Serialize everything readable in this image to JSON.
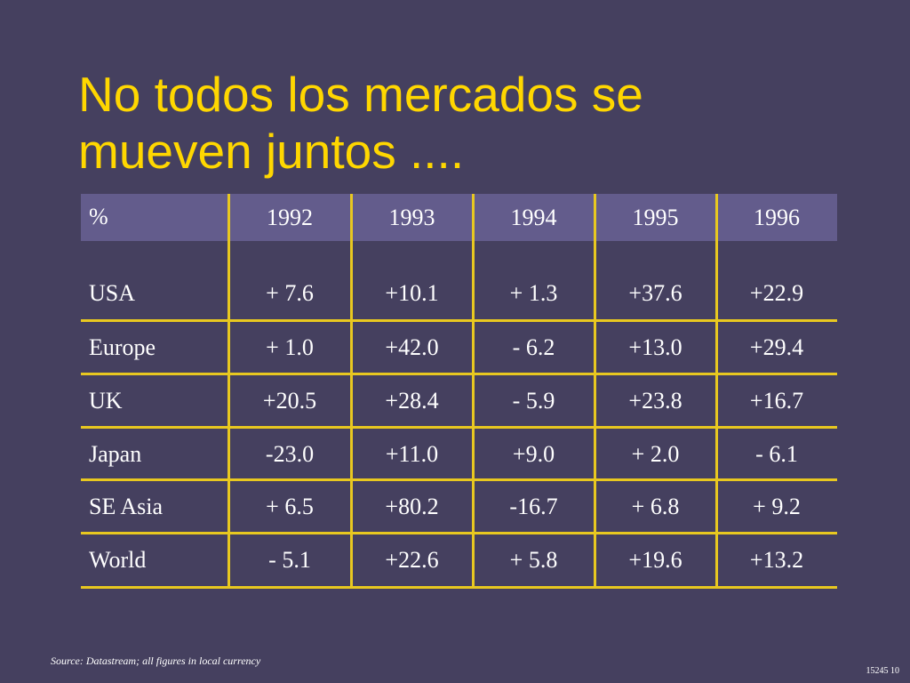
{
  "title_lines": [
    "No todos los mercados se",
    "mueven juntos ...."
  ],
  "table": {
    "header": [
      "%",
      "1992",
      "1993",
      "1994",
      "1995",
      "1996"
    ],
    "rows": [
      [
        "USA",
        "+ 7.6",
        "+10.1",
        "+ 1.3",
        "+37.6",
        "+22.9"
      ],
      [
        "Europe",
        "+ 1.0",
        "+42.0",
        "- 6.2",
        "+13.0",
        "+29.4"
      ],
      [
        "UK",
        "+20.5",
        "+28.4",
        "- 5.9",
        "+23.8",
        "+16.7"
      ],
      [
        "Japan",
        "-23.0",
        "+11.0",
        "+9.0",
        "+ 2.0",
        "- 6.1"
      ],
      [
        "SE Asia",
        "+ 6.5",
        "+80.2",
        "-16.7",
        "+ 6.8",
        "+ 9.2"
      ],
      [
        "World",
        "- 5.1",
        "+22.6",
        "+ 5.8",
        "+19.6",
        "+13.2"
      ]
    ]
  },
  "source_note": "Source: Datastream; all figures in local currency",
  "page_number": "15245 10",
  "colors": {
    "background": "#45405f",
    "title": "#ffd700",
    "header_band": "#635c8c",
    "rule": "#e8c820",
    "text": "#ffffff"
  }
}
